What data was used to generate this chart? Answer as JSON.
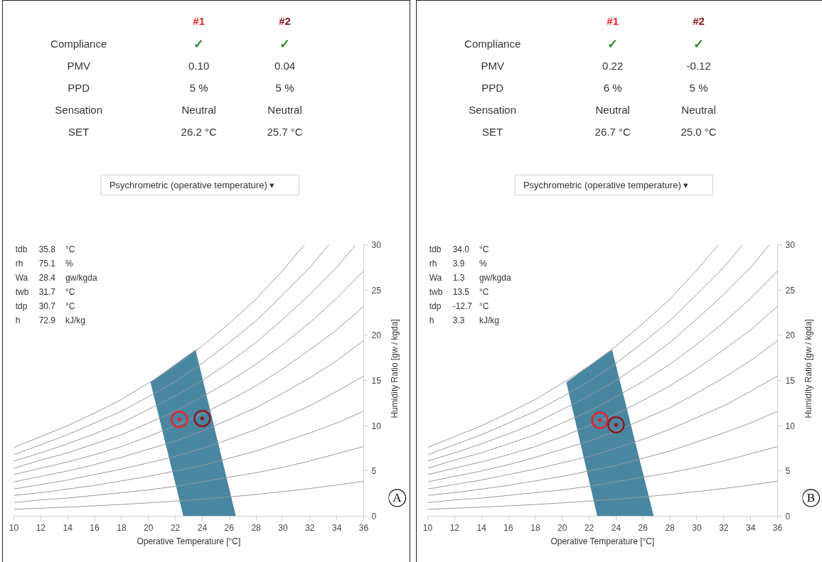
{
  "chart_data": [
    {
      "type": "other",
      "annotations": [
        "#1",
        "#2",
        "Compliance",
        "✓",
        "✓",
        "PMV",
        "0.10",
        "0.04",
        "PPD",
        "5 %",
        "5 %",
        "Sensation",
        "Neutral",
        "Neutral",
        "SET",
        "26.2 °C",
        "25.7 °C",
        "Psychrometric (operative temperature) ▾"
      ]
    },
    {
      "type": "line",
      "xlim": [
        10,
        36
      ],
      "ylim": [
        0,
        30
      ],
      "xticks": [
        10,
        12,
        14,
        16,
        18,
        20,
        22,
        24,
        26,
        28,
        30,
        32,
        34,
        36
      ],
      "yticks": [
        0,
        5,
        10,
        15,
        20,
        25,
        30
      ],
      "xlabel": "Operative Temperature [°C]",
      "ylabel": "Humidity Ratio [gw / kgda]",
      "series": [
        {
          "color": "#999999",
          "x": [
            10,
            12,
            14,
            16,
            18,
            20,
            22,
            24,
            26,
            28,
            30,
            32,
            34,
            36
          ],
          "values": [
            0.76,
            0.88,
            1.0,
            1.14,
            1.29,
            1.47,
            1.66,
            1.88,
            2.13,
            2.4,
            2.72,
            3.06,
            3.44,
            3.87
          ]
        },
        {
          "color": "#999999",
          "x": [
            10,
            12,
            14,
            16,
            18,
            20,
            22,
            24,
            26,
            28,
            30,
            32,
            34,
            36
          ],
          "values": [
            1.5,
            1.8,
            2.0,
            2.3,
            2.6,
            2.9,
            3.3,
            3.8,
            4.3,
            4.8,
            5.4,
            6.1,
            6.9,
            7.7
          ]
        },
        {
          "color": "#999999",
          "x": [
            10,
            12,
            14,
            16,
            18,
            20,
            22,
            24,
            26,
            28,
            30,
            32,
            34,
            36
          ],
          "values": [
            2.3,
            2.6,
            3.0,
            3.4,
            3.9,
            4.4,
            5.0,
            5.6,
            6.4,
            7.2,
            8.2,
            9.2,
            10.3,
            11.6
          ]
        },
        {
          "color": "#999999",
          "x": [
            10,
            12,
            14,
            16,
            18,
            20,
            22,
            24,
            26,
            28,
            30,
            32,
            34,
            36
          ],
          "values": [
            3.0,
            3.5,
            4.0,
            4.6,
            5.2,
            5.9,
            6.6,
            7.5,
            8.5,
            9.6,
            10.9,
            12.2,
            13.8,
            15.5
          ]
        },
        {
          "color": "#999999",
          "x": [
            10,
            12,
            14,
            16,
            18,
            20,
            22,
            24,
            26,
            28,
            30,
            32,
            34,
            36
          ],
          "values": [
            3.8,
            4.4,
            5.0,
            5.7,
            6.5,
            7.4,
            8.3,
            9.4,
            10.7,
            12.0,
            13.6,
            15.3,
            17.2,
            19.4
          ]
        },
        {
          "color": "#999999",
          "x": [
            10,
            12,
            14,
            16,
            18,
            20,
            22,
            24,
            26,
            28,
            30,
            32,
            34,
            36
          ],
          "values": [
            4.6,
            5.3,
            6.0,
            6.8,
            7.7,
            8.8,
            10.0,
            11.3,
            12.8,
            14.4,
            16.3,
            18.4,
            20.6,
            23.2
          ]
        },
        {
          "color": "#999999",
          "x": [
            10,
            12,
            14,
            16,
            18,
            20,
            22,
            24,
            26,
            28,
            30,
            32,
            34,
            36
          ],
          "values": [
            5.3,
            6.2,
            7.0,
            8.0,
            9.0,
            10.3,
            11.6,
            13.2,
            14.9,
            16.8,
            19.0,
            21.4,
            24.1,
            27.1
          ]
        },
        {
          "color": "#999999",
          "x": [
            10,
            12,
            14,
            16,
            18,
            20,
            22,
            24,
            26,
            28,
            30,
            32,
            34,
            35.4
          ],
          "values": [
            6.1,
            7.0,
            8.0,
            9.1,
            10.3,
            11.8,
            13.3,
            15.0,
            17.0,
            19.2,
            21.8,
            24.5,
            27.5,
            30
          ]
        },
        {
          "color": "#999999",
          "x": [
            10,
            12,
            14,
            16,
            18,
            20,
            22,
            24,
            26,
            28,
            30,
            32,
            33.4
          ],
          "values": [
            6.8,
            7.9,
            9.0,
            10.3,
            11.6,
            13.2,
            14.9,
            16.9,
            19.2,
            21.6,
            24.5,
            27.5,
            30
          ]
        },
        {
          "color": "#999999",
          "x": [
            10,
            12,
            14,
            16,
            18,
            20,
            22,
            24,
            26,
            28,
            30,
            31.6
          ],
          "values": [
            7.6,
            8.8,
            10.0,
            11.4,
            12.9,
            14.7,
            16.6,
            18.8,
            21.3,
            24.0,
            27.2,
            30
          ]
        },
        {
          "type": "area",
          "color": "#3f7f9c",
          "x": [
            20.15,
            23.5,
            26.5,
            22.6
          ],
          "values": [
            14.8,
            18.4,
            0,
            0
          ]
        },
        {
          "type": "scatter",
          "marker": "circle",
          "color": "#e8242b",
          "x": [
            22.3
          ],
          "values": [
            10.7
          ]
        },
        {
          "type": "scatter",
          "marker": "circle",
          "color": "#8b1a1a",
          "x": [
            24.0
          ],
          "values": [
            10.8
          ]
        }
      ],
      "annotations": [
        "tdb 35.8 °C",
        "rh 75.1 %",
        "Wa 28.4 gw/kgda",
        "twb 31.7 °C",
        "tdp 30.7 °C",
        "h 72.9 kJ/kg",
        "A"
      ]
    },
    {
      "type": "other",
      "annotations": [
        "#1",
        "#2",
        "Compliance",
        "✓",
        "✓",
        "PMV",
        "0.22",
        "-0.12",
        "PPD",
        "6 %",
        "5 %",
        "Sensation",
        "Neutral",
        "Neutral",
        "SET",
        "26.7 °C",
        "25.0 °C",
        "Psychrometric (operative temperature) ▾"
      ]
    },
    {
      "type": "line",
      "xlim": [
        10,
        36
      ],
      "ylim": [
        0,
        30
      ],
      "xticks": [
        10,
        12,
        14,
        16,
        18,
        20,
        22,
        24,
        26,
        28,
        30,
        32,
        34,
        36
      ],
      "yticks": [
        0,
        5,
        10,
        15,
        20,
        25,
        30
      ],
      "xlabel": "Operative Temperature [°C]",
      "ylabel": "Humidity Ratio [gw / kgda]",
      "series": [
        {
          "color": "#999999",
          "x": [
            10,
            12,
            14,
            16,
            18,
            20,
            22,
            24,
            26,
            28,
            30,
            32,
            34,
            36
          ],
          "values": [
            0.76,
            0.88,
            1.0,
            1.14,
            1.29,
            1.47,
            1.66,
            1.88,
            2.13,
            2.4,
            2.72,
            3.06,
            3.44,
            3.87
          ]
        },
        {
          "color": "#999999",
          "x": [
            10,
            12,
            14,
            16,
            18,
            20,
            22,
            24,
            26,
            28,
            30,
            32,
            34,
            36
          ],
          "values": [
            1.5,
            1.8,
            2.0,
            2.3,
            2.6,
            2.9,
            3.3,
            3.8,
            4.3,
            4.8,
            5.4,
            6.1,
            6.9,
            7.7
          ]
        },
        {
          "color": "#999999",
          "x": [
            10,
            12,
            14,
            16,
            18,
            20,
            22,
            24,
            26,
            28,
            30,
            32,
            34,
            36
          ],
          "values": [
            2.3,
            2.6,
            3.0,
            3.4,
            3.9,
            4.4,
            5.0,
            5.6,
            6.4,
            7.2,
            8.2,
            9.2,
            10.3,
            11.6
          ]
        },
        {
          "color": "#999999",
          "x": [
            10,
            12,
            14,
            16,
            18,
            20,
            22,
            24,
            26,
            28,
            30,
            32,
            34,
            36
          ],
          "values": [
            3.0,
            3.5,
            4.0,
            4.6,
            5.2,
            5.9,
            6.6,
            7.5,
            8.5,
            9.6,
            10.9,
            12.2,
            13.8,
            15.5
          ]
        },
        {
          "color": "#999999",
          "x": [
            10,
            12,
            14,
            16,
            18,
            20,
            22,
            24,
            26,
            28,
            30,
            32,
            34,
            36
          ],
          "values": [
            3.8,
            4.4,
            5.0,
            5.7,
            6.5,
            7.4,
            8.3,
            9.4,
            10.7,
            12.0,
            13.6,
            15.3,
            17.2,
            19.4
          ]
        },
        {
          "color": "#999999",
          "x": [
            10,
            12,
            14,
            16,
            18,
            20,
            22,
            24,
            26,
            28,
            30,
            32,
            34,
            36
          ],
          "values": [
            4.6,
            5.3,
            6.0,
            6.8,
            7.7,
            8.8,
            10.0,
            11.3,
            12.8,
            14.4,
            16.3,
            18.4,
            20.6,
            23.2
          ]
        },
        {
          "color": "#999999",
          "x": [
            10,
            12,
            14,
            16,
            18,
            20,
            22,
            24,
            26,
            28,
            30,
            32,
            34,
            36
          ],
          "values": [
            5.3,
            6.2,
            7.0,
            8.0,
            9.0,
            10.3,
            11.6,
            13.2,
            14.9,
            16.8,
            19.0,
            21.4,
            24.1,
            27.1
          ]
        },
        {
          "color": "#999999",
          "x": [
            10,
            12,
            14,
            16,
            18,
            20,
            22,
            24,
            26,
            28,
            30,
            32,
            34,
            35.4
          ],
          "values": [
            6.1,
            7.0,
            8.0,
            9.1,
            10.3,
            11.8,
            13.3,
            15.0,
            17.0,
            19.2,
            21.8,
            24.5,
            27.5,
            30
          ]
        },
        {
          "color": "#999999",
          "x": [
            10,
            12,
            14,
            16,
            18,
            20,
            22,
            24,
            26,
            28,
            30,
            32,
            33.4
          ],
          "values": [
            6.8,
            7.9,
            9.0,
            10.3,
            11.6,
            13.2,
            14.9,
            16.9,
            19.2,
            21.6,
            24.5,
            27.5,
            30
          ]
        },
        {
          "color": "#999999",
          "x": [
            10,
            12,
            14,
            16,
            18,
            20,
            22,
            24,
            26,
            28,
            30,
            31.6
          ],
          "values": [
            7.6,
            8.8,
            10.0,
            11.4,
            12.9,
            14.7,
            16.6,
            18.8,
            21.3,
            24.0,
            27.2,
            30
          ]
        },
        {
          "type": "area",
          "color": "#3f7f9c",
          "x": [
            20.3,
            23.7,
            26.8,
            22.6
          ],
          "values": [
            14.8,
            18.4,
            0,
            0
          ]
        },
        {
          "type": "scatter",
          "marker": "circle",
          "color": "#e8242b",
          "x": [
            22.8
          ],
          "values": [
            10.6
          ]
        },
        {
          "type": "scatter",
          "marker": "circle",
          "color": "#8b1a1a",
          "x": [
            24.0
          ],
          "values": [
            10.1
          ]
        }
      ],
      "annotations": [
        "tdb 34.0 °C",
        "rh 3.9 %",
        "Wa 1.3 gw/kgda",
        "twb 13.5 °C",
        "tdp -12.7 °C",
        "h 3.3 kJ/kg",
        "B"
      ]
    }
  ]
}
